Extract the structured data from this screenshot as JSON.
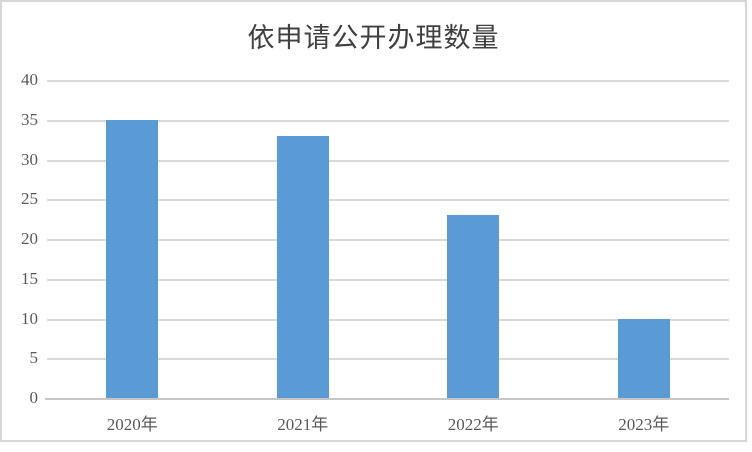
{
  "chart_data": {
    "type": "bar",
    "title": "依申请公开办理数量",
    "categories": [
      "2020年",
      "2021年",
      "2022年",
      "2023年"
    ],
    "values": [
      35,
      33,
      23,
      10
    ],
    "xlabel": "",
    "ylabel": "",
    "ylim": [
      0,
      40
    ],
    "yticks": [
      0,
      5,
      10,
      15,
      20,
      25,
      30,
      35,
      40
    ],
    "grid": true,
    "legend_position": "none",
    "colors": {
      "bar": "#5B9BD5",
      "gridline": "#D9D9D9",
      "axis_line": "#C6C6C6",
      "tick_label": "#595959",
      "title": "#404040",
      "frame_border": "#D6D6D6",
      "background": "#FFFFFF"
    }
  }
}
